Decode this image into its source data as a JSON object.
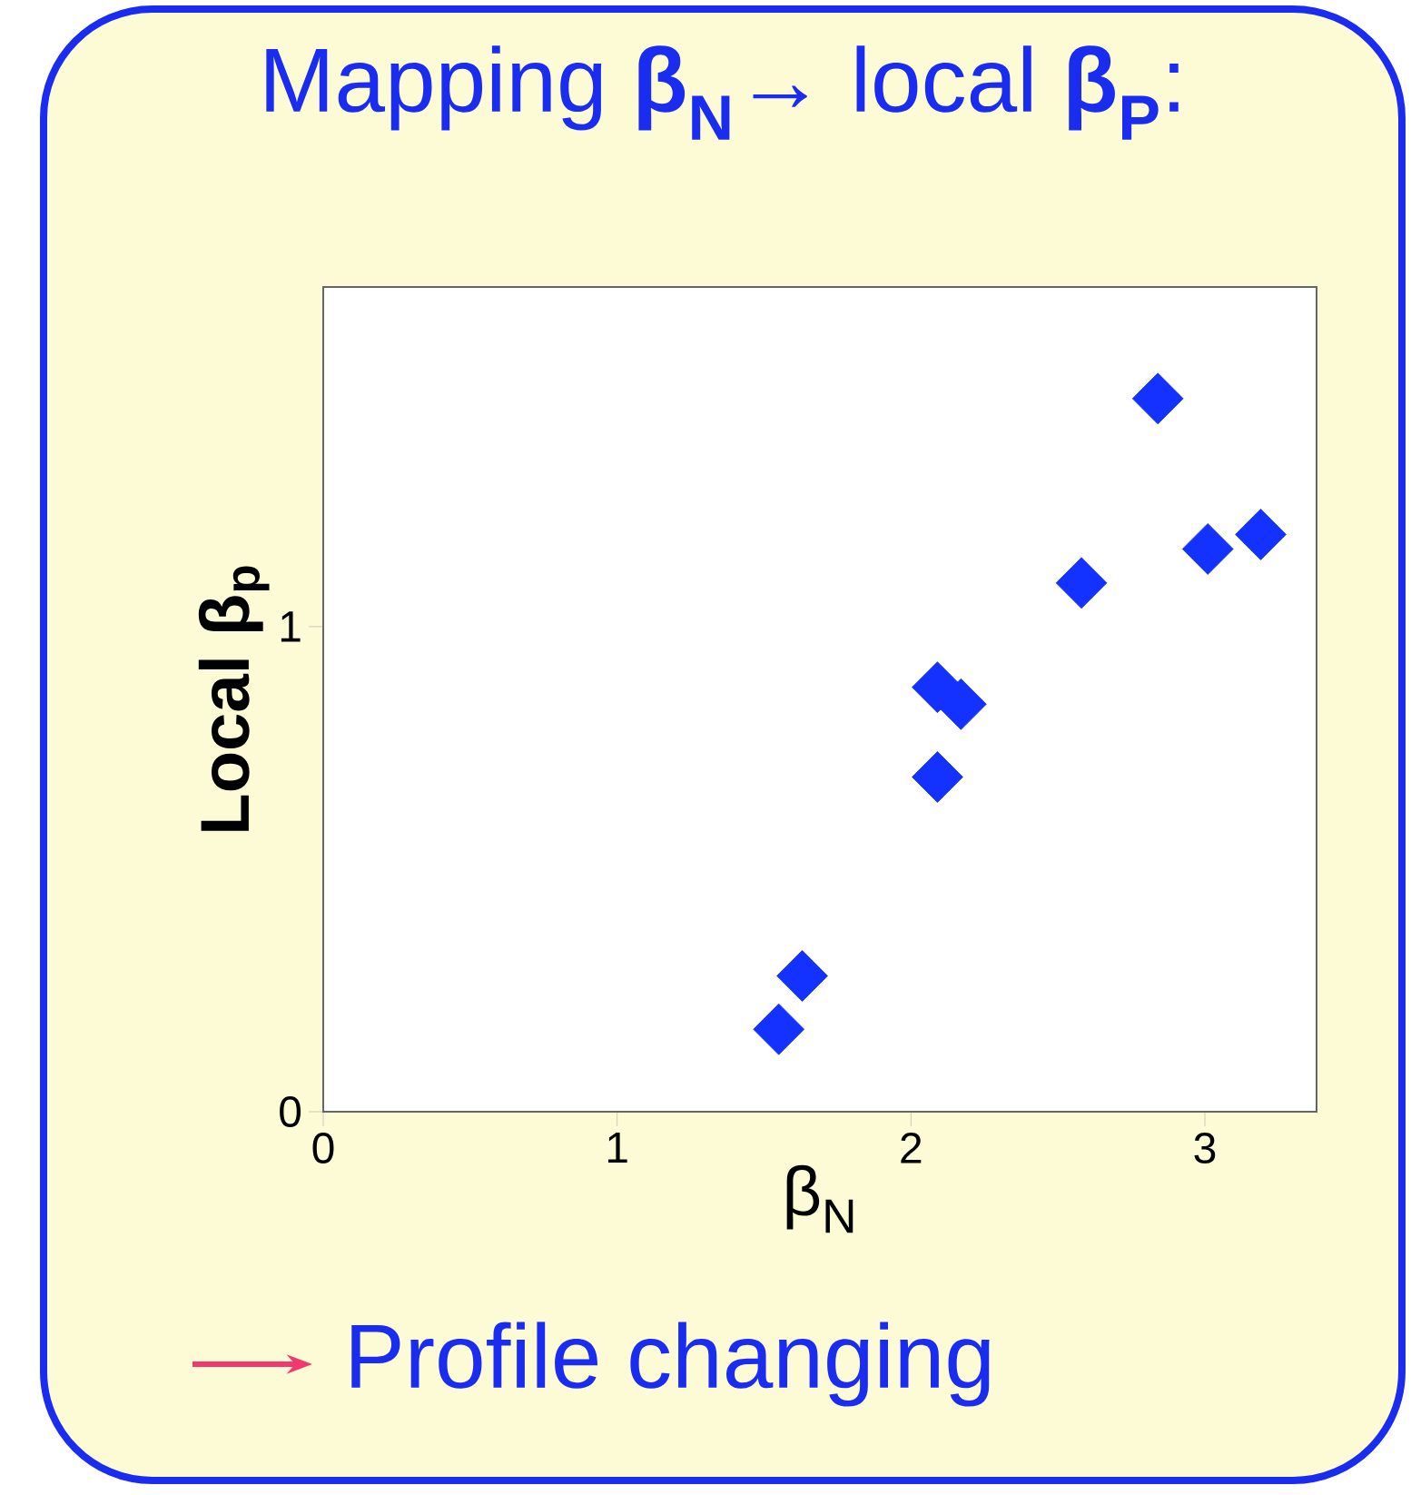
{
  "chart_data": {
    "type": "scatter",
    "title": "Mapping **β$_{N}$**→ local **β$_{P}$**:",
    "xlabel": "β$_{N}$",
    "ylabel": "**Local β$_{p}$**",
    "annotations": [
      "Profile changing"
    ],
    "x": [
      1.55,
      1.63,
      2.09,
      2.09,
      2.13,
      2.17,
      2.58,
      2.84,
      3.01,
      3.19
    ],
    "series": [
      {
        "color": "#1432ff",
        "values": [
          0.17,
          0.28,
          0.69,
          0.875,
          null,
          0.84,
          1.09,
          1.47,
          1.16,
          1.19
        ]
      }
    ],
    "xlim": [
      0,
      3.38
    ],
    "ylim": [
      0,
      1.7
    ],
    "xticks": [
      0,
      1,
      2,
      3
    ],
    "yticks": [
      0,
      1
    ],
    "marker": "diamond",
    "grid": false
  }
}
